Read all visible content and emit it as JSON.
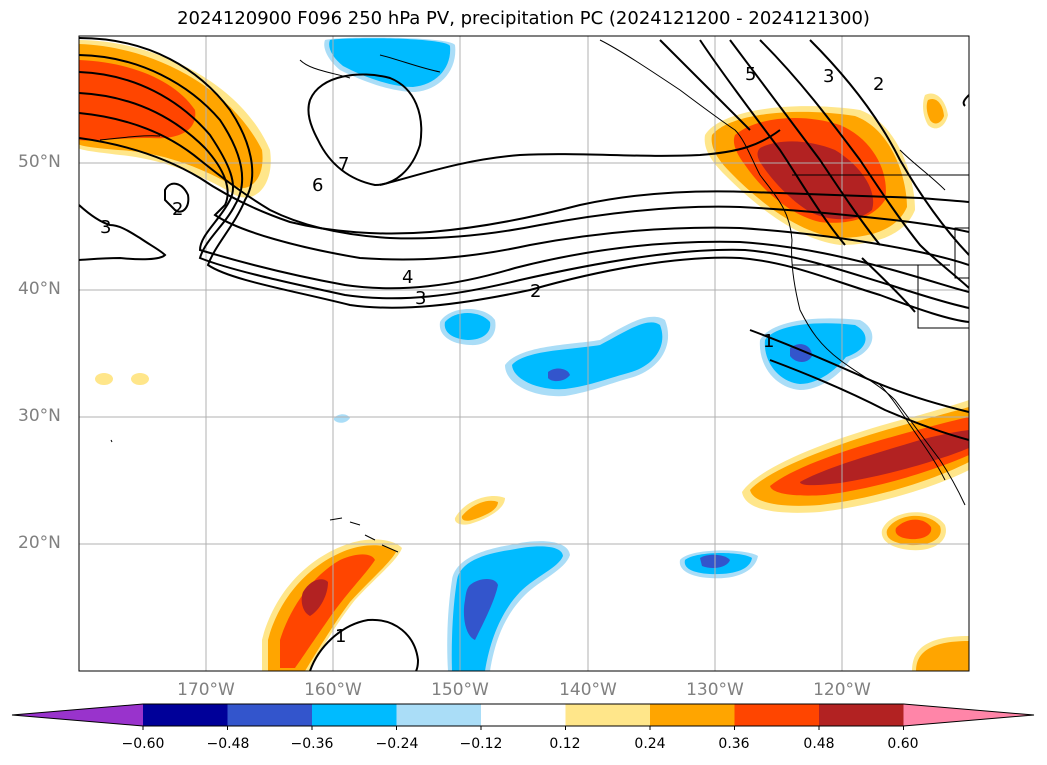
{
  "title": "2024120900 F096 250 hPa PV, precipitation PC (2024121200 - 2024121300)",
  "map": {
    "lat_labels": [
      "50°N",
      "40°N",
      "30°N",
      "20°N"
    ],
    "lon_labels": [
      "170°W",
      "160°W",
      "150°W",
      "140°W",
      "130°W",
      "120°W"
    ],
    "contour_labels": [
      "2",
      "3",
      "4",
      "5",
      "6",
      "7",
      "1"
    ],
    "extent": {
      "lon": [
        -180,
        -110
      ],
      "lat": [
        10,
        60
      ]
    }
  },
  "colorbar": {
    "ticks": [
      "−0.60",
      "−0.48",
      "−0.36",
      "−0.24",
      "−0.12",
      "0.12",
      "0.24",
      "0.36",
      "0.48",
      "0.60"
    ],
    "colors": [
      "#9933cc",
      "#000099",
      "#3355cc",
      "#00bbff",
      "#aaddf7",
      "#ffffff",
      "#ffe68a",
      "#ffa500",
      "#ff4500",
      "#b22222",
      "#ff85a8"
    ]
  }
}
